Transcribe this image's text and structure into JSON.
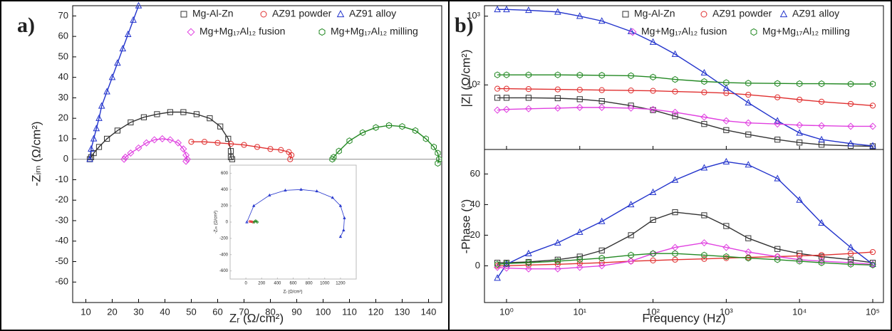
{
  "panel_labels": [
    "a)",
    "b)"
  ],
  "chart_data": [
    {
      "type": "scatter",
      "xlabel": "Zᵣ (Ω/cm²)",
      "ylabel": "-Zᵢₘ (Ω/cm²)",
      "xlim": [
        5,
        145
      ],
      "ylim": [
        -70,
        75
      ],
      "xticks": [
        10,
        20,
        30,
        40,
        50,
        60,
        70,
        80,
        90,
        100,
        110,
        120,
        130,
        140
      ],
      "yticks": [
        -60,
        -50,
        -40,
        -30,
        -20,
        -10,
        0,
        10,
        20,
        30,
        40,
        50,
        60,
        70
      ],
      "zero_line": true,
      "series": [
        {
          "name": "Mg-Al-Zn",
          "color": "#333333",
          "marker": "square",
          "x": [
            11.5,
            12,
            13,
            15,
            18,
            22,
            27,
            32,
            37,
            42,
            47,
            52,
            57,
            61,
            64,
            65,
            65,
            65.5
          ],
          "values": [
            0,
            1,
            3,
            6,
            10,
            14,
            18,
            20.5,
            22,
            23,
            23,
            22,
            20,
            16,
            10,
            4,
            1,
            0
          ]
        },
        {
          "name": "AZ91 powder",
          "color": "#e03030",
          "marker": "circle",
          "x": [
            50,
            55,
            60,
            65,
            70,
            75,
            80,
            84,
            87,
            88,
            87.5
          ],
          "values": [
            8.5,
            8.5,
            8,
            7.5,
            7,
            6,
            5,
            4.5,
            3.5,
            2,
            0
          ]
        },
        {
          "name": "AZ91 alloy",
          "color": "#2233cc",
          "marker": "triangle",
          "x": [
            11.5,
            12,
            13,
            14,
            15,
            16,
            18,
            20,
            22,
            24,
            26,
            28,
            30
          ],
          "values": [
            0,
            5,
            10,
            15,
            20,
            26,
            33,
            40,
            47,
            54,
            61,
            68,
            75
          ]
        },
        {
          "name": "Mg+Mg₁₇Al₁₂ fusion",
          "color": "#e040e0",
          "marker": "diamond",
          "x": [
            24.5,
            25,
            27,
            30,
            33,
            36,
            39,
            42,
            45,
            47,
            48,
            48.5,
            48
          ],
          "values": [
            0,
            1,
            3,
            5.5,
            8,
            9.5,
            10,
            9.5,
            8,
            5,
            2,
            0,
            -1
          ]
        },
        {
          "name": "Mg+Mg₁₇Al₁₂ milling",
          "color": "#228822",
          "marker": "hexagon",
          "x": [
            103.5,
            104,
            106,
            110,
            115,
            120,
            125,
            130,
            135,
            139,
            142,
            143.5,
            144,
            143.5
          ],
          "values": [
            0,
            1,
            4,
            9,
            13,
            15.5,
            16.5,
            16,
            14,
            10,
            6,
            3,
            0,
            -2
          ]
        }
      ]
    },
    {
      "type": "scatter",
      "xlabel": "Zᵣ (Ω/cm²)",
      "ylabel": "-Zᵢₘ (Ω/cm²)",
      "xlim": [
        -200,
        1400
      ],
      "ylim": [
        -700,
        700
      ],
      "xticks": [
        0,
        200,
        400,
        600,
        800,
        1000,
        1200
      ],
      "yticks": [
        -600,
        -400,
        -200,
        0,
        200,
        400,
        600
      ],
      "series": [
        {
          "color": "#2233cc",
          "marker": "triangle",
          "x": [
            12,
            100,
            300,
            500,
            700,
            900,
            1100,
            1200,
            1250,
            1240,
            1200
          ],
          "values": [
            0,
            200,
            330,
            390,
            400,
            380,
            300,
            200,
            50,
            -100,
            -180
          ]
        },
        {
          "color": "#e03030",
          "marker": "circle",
          "x": [
            50,
            70,
            88
          ],
          "values": [
            8,
            6,
            0
          ]
        },
        {
          "color": "#228822",
          "marker": "hexagon",
          "x": [
            104,
            124,
            144
          ],
          "values": [
            0,
            16,
            0
          ]
        }
      ]
    },
    {
      "type": "scatter",
      "ylabel": "|Z| (Ω/cm²)",
      "xscale": "log",
      "yscale": "log",
      "xlim": [
        0.5,
        140000
      ],
      "ylim": [
        11.5,
        1420
      ],
      "xticks": [
        1,
        10,
        100,
        1000,
        10000,
        100000
      ],
      "yticks": [
        {
          "value": 100,
          "label": "10²"
        },
        {
          "value": 1000,
          "label": "10³"
        }
      ],
      "series": [
        {
          "name": "Mg-Al-Zn",
          "color": "#333333",
          "marker": "square",
          "x": [
            0.75,
            1,
            2,
            5,
            10,
            20,
            50,
            100,
            200,
            500,
            1000,
            2000,
            5000,
            10000,
            20000,
            50000,
            100000
          ],
          "values": [
            65,
            65,
            65,
            64,
            62,
            58,
            50,
            43,
            35,
            27,
            22,
            19,
            16,
            14.5,
            13.5,
            13,
            12.8
          ]
        },
        {
          "name": "AZ91 powder",
          "color": "#e03030",
          "marker": "circle",
          "x": [
            0.75,
            1,
            2,
            5,
            10,
            20,
            50,
            100,
            200,
            500,
            1000,
            2000,
            5000,
            10000,
            20000,
            50000,
            100000
          ],
          "values": [
            88,
            88,
            87,
            86,
            85,
            84,
            83,
            82,
            80,
            78,
            76,
            72,
            66,
            61,
            57,
            53,
            50
          ]
        },
        {
          "name": "AZ91 alloy",
          "color": "#2233cc",
          "marker": "triangle",
          "x": [
            0.75,
            1,
            2,
            5,
            10,
            20,
            50,
            100,
            200,
            500,
            1000,
            2000,
            5000,
            10000,
            20000,
            50000,
            100000
          ],
          "values": [
            1250,
            1250,
            1220,
            1150,
            1000,
            850,
            600,
            420,
            280,
            150,
            90,
            55,
            30,
            20,
            16,
            14,
            13
          ]
        },
        {
          "name": "Mg+Mg₁₇Al₁₂ fusion",
          "color": "#e040e0",
          "marker": "diamond",
          "x": [
            0.75,
            1,
            2,
            5,
            10,
            20,
            50,
            100,
            200,
            500,
            1000,
            2000,
            5000,
            10000,
            20000,
            50000,
            100000
          ],
          "values": [
            43,
            44,
            45,
            46,
            47,
            47,
            46,
            44,
            40,
            34,
            30,
            28,
            27,
            26,
            25.5,
            25,
            25
          ]
        },
        {
          "name": "Mg+Mg₁₇Al₁₂ milling",
          "color": "#228822",
          "marker": "hexagon",
          "x": [
            0.75,
            1,
            2,
            5,
            10,
            20,
            50,
            100,
            200,
            500,
            1000,
            2000,
            5000,
            10000,
            20000,
            50000,
            100000
          ],
          "values": [
            140,
            140,
            140,
            140,
            139,
            138,
            136,
            130,
            120,
            112,
            108,
            106,
            105,
            104,
            104,
            103,
            103
          ]
        }
      ]
    },
    {
      "type": "scatter",
      "xlabel": "Frequency (Hz)",
      "ylabel": "-Phase (°)",
      "xscale": "log",
      "xlim": [
        0.5,
        140000
      ],
      "ylim": [
        -24,
        76
      ],
      "xticks": [
        {
          "value": 1,
          "label": "10⁰"
        },
        {
          "value": 10,
          "label": "10¹"
        },
        {
          "value": 100,
          "label": "10²"
        },
        {
          "value": 1000,
          "label": "10³"
        },
        {
          "value": 10000,
          "label": "10⁴"
        },
        {
          "value": 100000,
          "label": "10⁵"
        }
      ],
      "yticks": [
        0,
        20,
        40,
        60
      ],
      "series": [
        {
          "color": "#333333",
          "marker": "square",
          "x": [
            0.75,
            1,
            2,
            5,
            10,
            20,
            50,
            100,
            200,
            500,
            1000,
            2000,
            5000,
            10000,
            20000,
            50000,
            100000
          ],
          "values": [
            2,
            2,
            2.5,
            4,
            6,
            10,
            20,
            30,
            35,
            33,
            26,
            18,
            11,
            8,
            6,
            4,
            2
          ]
        },
        {
          "color": "#e03030",
          "marker": "circle",
          "x": [
            0.75,
            1,
            2,
            5,
            10,
            20,
            50,
            100,
            200,
            500,
            1000,
            2000,
            5000,
            10000,
            20000,
            50000,
            100000
          ],
          "values": [
            0,
            0,
            0.5,
            1,
            1.5,
            2,
            3,
            3.5,
            4,
            4.5,
            5,
            5.5,
            6,
            6.5,
            7,
            8,
            9
          ]
        },
        {
          "color": "#2233cc",
          "marker": "triangle",
          "x": [
            0.75,
            1,
            2,
            5,
            10,
            20,
            50,
            100,
            200,
            500,
            1000,
            2000,
            5000,
            10000,
            20000,
            50000,
            100000
          ],
          "values": [
            -8,
            1,
            8,
            15,
            22,
            29,
            40,
            48,
            56,
            64,
            68,
            66,
            57,
            43,
            28,
            12,
            1
          ]
        },
        {
          "color": "#e040e0",
          "marker": "diamond",
          "x": [
            0.75,
            1,
            2,
            5,
            10,
            20,
            50,
            100,
            200,
            500,
            1000,
            2000,
            5000,
            10000,
            20000,
            50000,
            100000
          ],
          "values": [
            -1,
            -1.5,
            -2,
            -2,
            -1,
            0,
            3,
            8,
            12,
            15,
            12,
            9,
            6,
            4,
            3,
            2,
            1
          ]
        },
        {
          "color": "#228822",
          "marker": "hexagon",
          "x": [
            0.75,
            1,
            2,
            5,
            10,
            20,
            50,
            100,
            200,
            500,
            1000,
            2000,
            5000,
            10000,
            20000,
            50000,
            100000
          ],
          "values": [
            1,
            1.5,
            2,
            3,
            4,
            5,
            7,
            8,
            8,
            7,
            6,
            5,
            4,
            3,
            2,
            1,
            0.5
          ]
        }
      ]
    }
  ]
}
